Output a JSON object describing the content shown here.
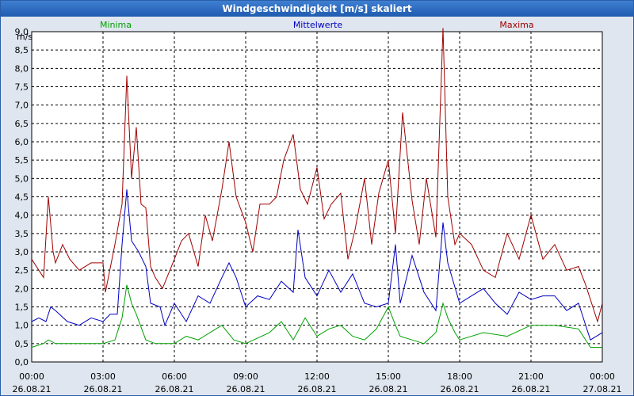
{
  "window": {
    "title": "Windgeschwindigkeit [m/s] skaliert"
  },
  "chart_data": {
    "type": "line",
    "title": "Windgeschwindigkeit [m/s] skaliert",
    "ylabel": "m/s",
    "ylim": [
      0,
      9.0
    ],
    "y_ticks": [
      "0,0",
      "0,5",
      "1,0",
      "1,5",
      "2,0",
      "2,5",
      "3,0",
      "3,5",
      "4,0",
      "4,5",
      "5,0",
      "5,5",
      "6,0",
      "6,5",
      "7,0",
      "7,5",
      "8,0",
      "8,5",
      "9,0"
    ],
    "x_ticks": [
      {
        "time": "00:00",
        "date": "26.08.21"
      },
      {
        "time": "03:00",
        "date": "26.08.21"
      },
      {
        "time": "06:00",
        "date": "26.08.21"
      },
      {
        "time": "09:00",
        "date": "26.08.21"
      },
      {
        "time": "12:00",
        "date": "26.08.21"
      },
      {
        "time": "15:00",
        "date": "26.08.21"
      },
      {
        "time": "18:00",
        "date": "26.08.21"
      },
      {
        "time": "21:00",
        "date": "26.08.21"
      },
      {
        "time": "00:00",
        "date": "27.08.21"
      }
    ],
    "x_unit": "hours since 26.08.21 00:00",
    "xlim": [
      0,
      24
    ],
    "grid": true,
    "series": [
      {
        "name": "Minima",
        "color": "#00a000",
        "x": [
          0,
          0.5,
          0.7,
          1,
          2,
          3,
          3.5,
          3.8,
          4.0,
          4.2,
          4.4,
          4.8,
          5.2,
          5.6,
          6,
          6.5,
          7,
          7.5,
          8,
          8.5,
          9,
          10,
          10.5,
          11,
          11.5,
          12,
          12.5,
          13,
          13.5,
          14,
          14.5,
          15,
          15.3,
          15.5,
          16,
          16.5,
          17,
          17.3,
          17.5,
          17.8,
          18,
          19,
          20,
          21,
          22,
          23,
          23.5,
          24
        ],
        "values": [
          0.4,
          0.5,
          0.6,
          0.5,
          0.5,
          0.5,
          0.6,
          1.2,
          2.1,
          1.6,
          1.3,
          0.6,
          0.5,
          0.5,
          0.5,
          0.7,
          0.6,
          0.8,
          1.0,
          0.6,
          0.5,
          0.8,
          1.1,
          0.6,
          1.2,
          0.7,
          0.9,
          1.0,
          0.7,
          0.6,
          0.9,
          1.5,
          1.0,
          0.7,
          0.6,
          0.5,
          0.8,
          1.6,
          1.2,
          0.8,
          0.6,
          0.8,
          0.7,
          1.0,
          1.0,
          0.9,
          0.4,
          0.4
        ]
      },
      {
        "name": "Mittelwerte",
        "color": "#0000c0",
        "x": [
          0,
          0.3,
          0.6,
          0.8,
          1,
          1.5,
          2,
          2.5,
          3,
          3.3,
          3.6,
          3.8,
          4.0,
          4.2,
          4.5,
          4.8,
          5,
          5.4,
          5.6,
          6,
          6.5,
          7,
          7.5,
          8,
          8.3,
          8.6,
          9,
          9.5,
          10,
          10.5,
          11,
          11.2,
          11.5,
          12,
          12.5,
          13,
          13.5,
          14,
          14.5,
          15,
          15.3,
          15.5,
          16,
          16.5,
          17,
          17.3,
          17.5,
          18,
          18.5,
          19,
          19.5,
          20,
          20.5,
          21,
          21.5,
          22,
          22.5,
          23,
          23.5,
          24
        ],
        "values": [
          1.1,
          1.2,
          1.1,
          1.5,
          1.4,
          1.1,
          1.0,
          1.2,
          1.1,
          1.3,
          1.3,
          3.2,
          4.7,
          3.3,
          3.0,
          2.6,
          1.6,
          1.5,
          1.0,
          1.6,
          1.1,
          1.8,
          1.6,
          2.3,
          2.7,
          2.3,
          1.5,
          1.8,
          1.7,
          2.2,
          1.9,
          3.6,
          2.3,
          1.8,
          2.5,
          1.9,
          2.4,
          1.6,
          1.5,
          1.6,
          3.2,
          1.6,
          2.9,
          1.9,
          1.4,
          3.8,
          2.7,
          1.6,
          1.8,
          2.0,
          1.6,
          1.3,
          1.9,
          1.7,
          1.8,
          1.8,
          1.4,
          1.6,
          0.6,
          0.8
        ]
      },
      {
        "name": "Maxima",
        "color": "#a00000",
        "x": [
          0,
          0.3,
          0.5,
          0.7,
          0.9,
          1.0,
          1.3,
          1.6,
          2,
          2.5,
          3,
          3.1,
          3.5,
          3.8,
          4.0,
          4.2,
          4.4,
          4.6,
          4.8,
          5,
          5.2,
          5.5,
          6,
          6.3,
          6.6,
          7,
          7.3,
          7.6,
          8,
          8.3,
          8.6,
          9,
          9.3,
          9.6,
          10,
          10.3,
          10.6,
          11,
          11.3,
          11.6,
          12,
          12.3,
          12.6,
          13,
          13.3,
          13.6,
          14,
          14.3,
          14.6,
          15,
          15.3,
          15.6,
          16,
          16.3,
          16.6,
          17,
          17.3,
          17.5,
          17.8,
          18,
          18.5,
          19,
          19.5,
          20,
          20.5,
          21,
          21.5,
          22,
          22.5,
          23,
          23.3,
          23.6,
          23.8,
          24
        ],
        "values": [
          2.8,
          2.5,
          2.3,
          4.5,
          3.0,
          2.7,
          3.2,
          2.8,
          2.5,
          2.7,
          2.7,
          1.9,
          3.2,
          4.3,
          7.8,
          5.0,
          6.4,
          4.3,
          4.2,
          2.6,
          2.3,
          2.0,
          2.8,
          3.3,
          3.5,
          2.6,
          4.0,
          3.3,
          4.7,
          6.0,
          4.5,
          3.8,
          3.0,
          4.3,
          4.3,
          4.5,
          5.5,
          6.2,
          4.7,
          4.3,
          5.3,
          3.9,
          4.3,
          4.6,
          2.8,
          3.6,
          5.0,
          3.2,
          4.6,
          5.5,
          3.5,
          6.8,
          4.4,
          3.2,
          5.0,
          3.4,
          9.1,
          4.5,
          3.2,
          3.5,
          3.2,
          2.5,
          2.3,
          3.5,
          2.8,
          4.0,
          2.8,
          3.2,
          2.5,
          2.6,
          2.1,
          1.5,
          1.1,
          1.6
        ]
      }
    ]
  }
}
